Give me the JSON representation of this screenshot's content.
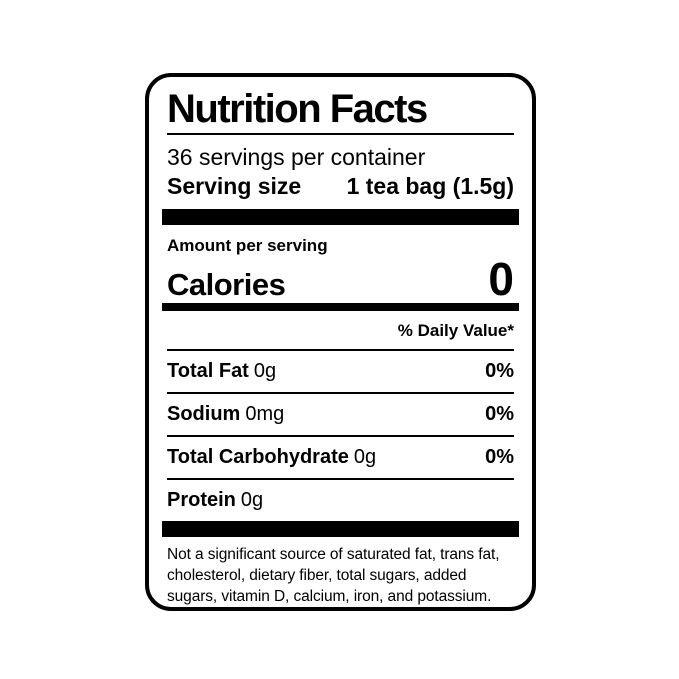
{
  "colors": {
    "ink": "#000000",
    "paper": "#ffffff"
  },
  "label": {
    "title": "Nutrition Facts",
    "servings_per_container": "36 servings per container",
    "serving_size": {
      "label": "Serving size",
      "value": "1 tea bag (1.5g)"
    },
    "amount_per_serving": "Amount per serving",
    "calories": {
      "label": "Calories",
      "value": "0"
    },
    "daily_value_header": "% Daily Value*",
    "nutrients": [
      {
        "name": "Total Fat",
        "amount": "0g",
        "daily_value": "0%"
      },
      {
        "name": "Sodium",
        "amount": "0mg",
        "daily_value": "0%"
      },
      {
        "name": "Total Carbohydrate",
        "amount": "0g",
        "daily_value": "0%"
      },
      {
        "name": "Protein",
        "amount": "0g",
        "daily_value": ""
      }
    ],
    "footnote": "Not a significant source of saturated fat, trans fat, cholesterol, dietary fiber, total sugars, added sugars, vitamin D, calcium, iron, and potassium."
  }
}
